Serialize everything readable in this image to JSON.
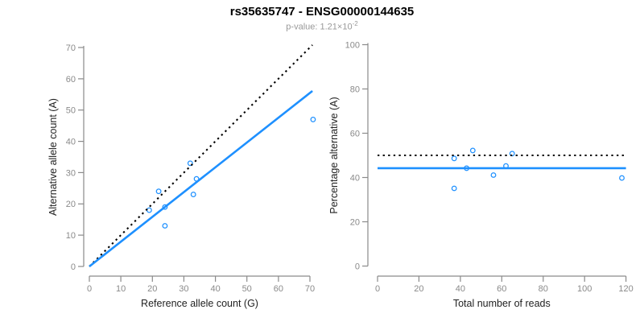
{
  "header": {
    "title": "rs35635747 - ENSG00000144635",
    "pvalue_prefix": "p-value: 1.21×10",
    "pvalue_exponent": "-2"
  },
  "colors": {
    "accent_blue": "#1E90FF",
    "dotted_black": "#000000",
    "axis_line": "#8a8a8a",
    "tick_label": "#8a8a8a",
    "axis_title": "#222222",
    "subtitle_gray": "#999999"
  },
  "chart_data": [
    {
      "type": "scatter",
      "panel": "allele-counts",
      "xlabel": "Reference allele count (G)",
      "ylabel": "Alternative allele count (A)",
      "xlim": [
        0,
        71
      ],
      "ylim": [
        0,
        71
      ],
      "xticks": [
        0,
        10,
        20,
        30,
        40,
        50,
        60,
        70
      ],
      "yticks": [
        0,
        10,
        20,
        30,
        40,
        50,
        60,
        70
      ],
      "grid": false,
      "legend": "none",
      "points": [
        [
          19,
          18
        ],
        [
          22,
          24
        ],
        [
          24,
          13
        ],
        [
          24,
          19
        ],
        [
          32,
          33
        ],
        [
          33,
          23
        ],
        [
          34,
          28
        ],
        [
          71,
          47
        ]
      ],
      "lines": [
        {
          "name": "identity-line",
          "style": "dotted",
          "color": "#000000",
          "x": [
            0,
            70.8
          ],
          "y": [
            0,
            70.8
          ]
        },
        {
          "name": "fit-line",
          "style": "solid",
          "color": "#1E90FF",
          "x": [
            0,
            70.8
          ],
          "y": [
            0,
            56.1
          ]
        }
      ]
    },
    {
      "type": "scatter",
      "panel": "percentage-alternative",
      "xlabel": "Total number of reads",
      "ylabel": "Percentage alternative (A)",
      "xlim": [
        0,
        120
      ],
      "ylim": [
        0,
        100
      ],
      "xticks": [
        0,
        20,
        40,
        60,
        80,
        100,
        120
      ],
      "yticks": [
        0,
        20,
        40,
        60,
        80,
        100
      ],
      "grid": false,
      "legend": "none",
      "points": [
        [
          37,
          35.1
        ],
        [
          37,
          48.6
        ],
        [
          43,
          44.2
        ],
        [
          46,
          52.2
        ],
        [
          56,
          41.1
        ],
        [
          62,
          45.2
        ],
        [
          65,
          50.8
        ],
        [
          118,
          39.8
        ]
      ],
      "lines": [
        {
          "name": "expected-50pct-line",
          "style": "dotted",
          "color": "#000000",
          "x": [
            0,
            120
          ],
          "y": [
            50,
            50
          ]
        },
        {
          "name": "mean-percentage-line",
          "style": "solid",
          "color": "#1E90FF",
          "x": [
            0,
            120
          ],
          "y": [
            44.2,
            44.2
          ]
        }
      ]
    }
  ]
}
